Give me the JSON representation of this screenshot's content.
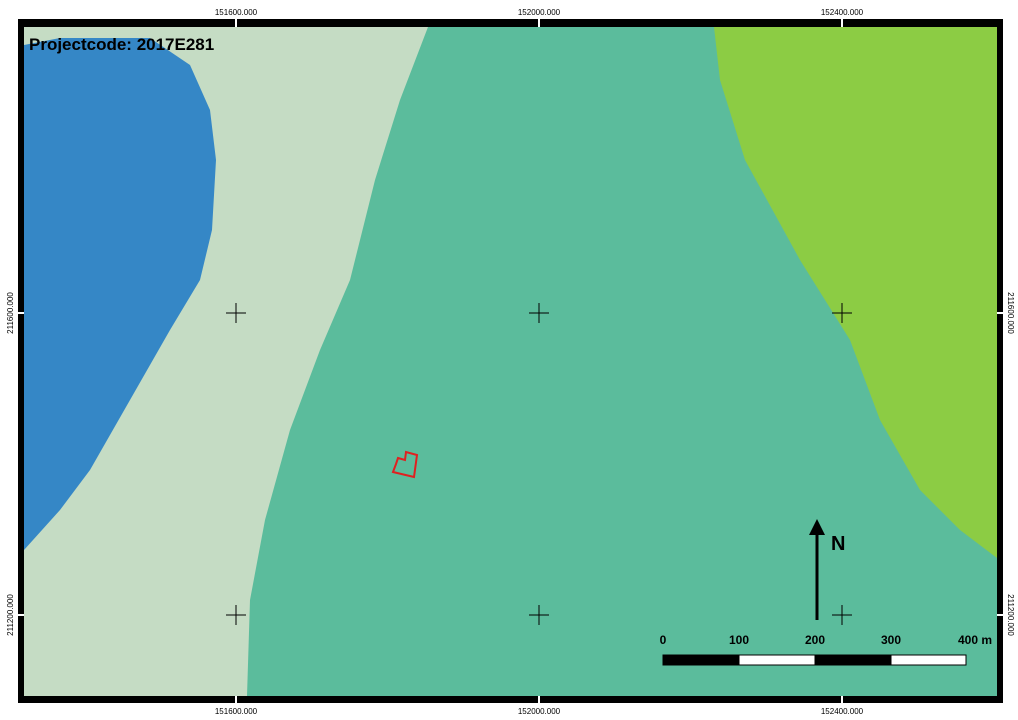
{
  "map": {
    "title": "Projectcode: 2017E281",
    "x_labels": [
      "151600.000",
      "152000.000",
      "152400.000"
    ],
    "y_labels": [
      "211600.000",
      "211200.000"
    ],
    "north": "N",
    "scale_labels": [
      "0",
      "100",
      "200",
      "300",
      "400 m"
    ]
  }
}
